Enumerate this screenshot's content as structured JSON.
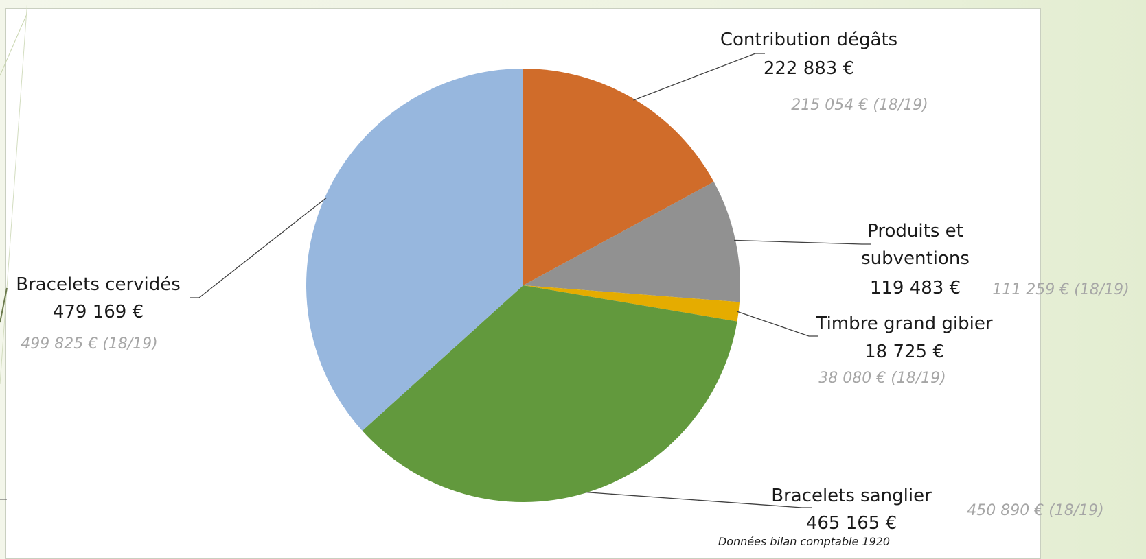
{
  "chart_data": {
    "type": "pie",
    "title": "",
    "unit": "€",
    "slices": [
      {
        "label": "Contribution dégâts",
        "value": 222883,
        "value_text": "222 883 €",
        "previous_text": "215 054 € (18/19)",
        "color": "#d06c2a"
      },
      {
        "label": "Produits et subventions",
        "label_lines": [
          "Produits et",
          "subventions"
        ],
        "value": 119483,
        "value_text": "119 483 €",
        "previous_text": "111 259 € (18/19)",
        "color": "#919191"
      },
      {
        "label": "Timbre grand gibier",
        "value": 18725,
        "value_text": "18 725 €",
        "previous_text": "38 080 € (18/19)",
        "color": "#e5ac00"
      },
      {
        "label": "Bracelets sanglier",
        "value": 465165,
        "value_text": "465 165 €",
        "previous_text": "450 890 € (18/19)",
        "color": "#62993d"
      },
      {
        "label": "Bracelets cervidés",
        "value": 479169,
        "value_text": "479 169 €",
        "previous_text": "499 825 € (18/19)",
        "color": "#97b7de"
      }
    ],
    "source_note": "Données bilan comptable 1920"
  }
}
